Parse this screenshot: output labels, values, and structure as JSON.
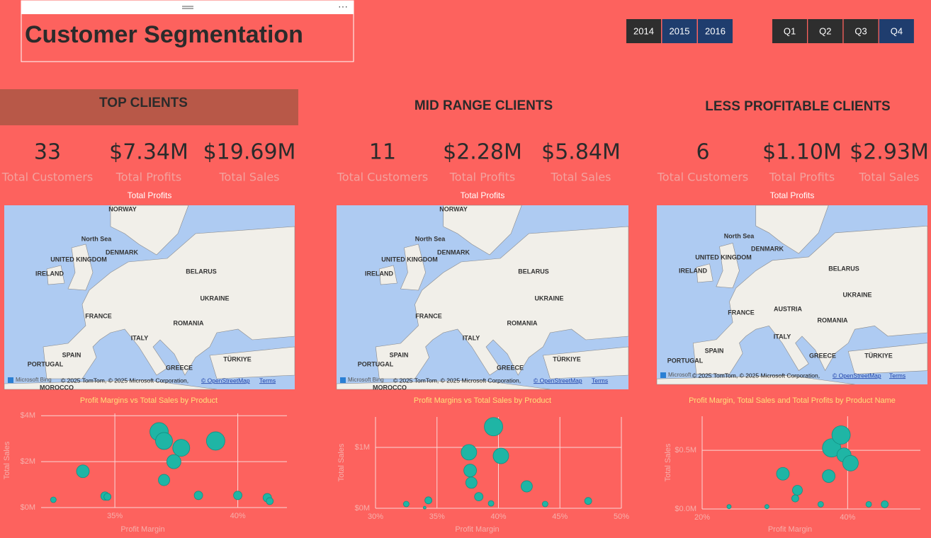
{
  "header": {
    "title": "Customer Segmentation"
  },
  "filters": {
    "years": [
      {
        "label": "2014",
        "selected": false
      },
      {
        "label": "2015",
        "selected": true
      },
      {
        "label": "2016",
        "selected": true
      }
    ],
    "quarters": [
      {
        "label": "Q1",
        "selected": false
      },
      {
        "label": "Q2",
        "selected": false
      },
      {
        "label": "Q3",
        "selected": false
      },
      {
        "label": "Q4",
        "selected": true
      }
    ]
  },
  "panels": [
    {
      "heading": "TOP CLIENTS",
      "highlighted": true,
      "kpis": [
        {
          "value": "33",
          "label": "Total Customers"
        },
        {
          "value": "$7.34M",
          "label": "Total Profits"
        },
        {
          "value": "$19.69M",
          "label": "Total Sales"
        }
      ],
      "map": {
        "title": "Total Profits",
        "labels": [
          "NORWAY",
          "North Sea",
          "DENMARK",
          "UNITED KINGDOM",
          "IRELAND",
          "BELARUS",
          "FRANCE",
          "UKRAINE",
          "ROMANIA",
          "ITALY",
          "SPAIN",
          "PORTUGAL",
          "GREECE",
          "TÜRKIYE",
          "MOROCCO"
        ],
        "provider": "Microsoft Bing",
        "attribution": "© 2025 TomTom, © 2025 Microsoft Corporation,",
        "osm": "© OpenStreetMap",
        "terms": "Terms"
      }
    },
    {
      "heading": "MID RANGE CLIENTS",
      "highlighted": false,
      "kpis": [
        {
          "value": "11",
          "label": "Total Customers"
        },
        {
          "value": "$2.28M",
          "label": "Total Profits"
        },
        {
          "value": "$5.84M",
          "label": "Total Sales"
        }
      ],
      "map": {
        "title": "Total Profits",
        "labels": [
          "NORWAY",
          "North Sea",
          "DENMARK",
          "UNITED KINGDOM",
          "IRELAND",
          "BELARUS",
          "FRANCE",
          "UKRAINE",
          "ROMANIA",
          "ITALY",
          "SPAIN",
          "PORTUGAL",
          "GREECE",
          "TÜRKIYE",
          "MOROCCO"
        ],
        "provider": "Microsoft Bing",
        "attribution": "© 2025 TomTom, © 2025 Microsoft Corporation,",
        "osm": "© OpenStreetMap",
        "terms": "Terms"
      }
    },
    {
      "heading": "LESS PROFITABLE CLIENTS",
      "highlighted": false,
      "kpis": [
        {
          "value": "6",
          "label": "Total Customers"
        },
        {
          "value": "$1.10M",
          "label": "Total Profits"
        },
        {
          "value": "$2.93M",
          "label": "Total Sales"
        }
      ],
      "map": {
        "title": "Total Profits",
        "labels": [
          "North Sea",
          "DENMARK",
          "UNITED KINGDOM",
          "IRELAND",
          "BELARUS",
          "FRANCE",
          "UKRAINE",
          "AUSTRIA",
          "ROMANIA",
          "ITALY",
          "SPAIN",
          "PORTUGAL",
          "GREECE",
          "TÜRKIYE"
        ],
        "provider": "Microsoft",
        "attribution": "© 2025 TomTom, © 2025 Microsoft Corporation,",
        "osm": "© OpenStreetMap",
        "terms": "Terms"
      }
    }
  ],
  "chart_data": [
    {
      "type": "scatter",
      "title": "Profit Margins vs Total Sales by Product",
      "x_label": "Profit Margin",
      "y_label": "Total Sales",
      "color": "#1fb5a5",
      "grid": true,
      "x": [
        32.5,
        33.7,
        34.6,
        34.7,
        36.8,
        37.0,
        37.7,
        37.4,
        37.0,
        38.4,
        39.1,
        40.0,
        41.2,
        41.3
      ],
      "values": [
        340000,
        1580000,
        500000,
        470000,
        3300000,
        2900000,
        2600000,
        2000000,
        1200000,
        530000,
        2900000,
        530000,
        430000,
        280000
      ],
      "sizes": [
        16,
        81,
        36,
        25,
        169,
        144,
        144,
        100,
        64,
        36,
        169,
        36,
        36,
        25
      ],
      "xlim": [
        32,
        42
      ],
      "ylim": [
        0,
        4100000
      ],
      "xticks": [
        {
          "value": 35,
          "label": "35%"
        },
        {
          "value": 40,
          "label": "40%"
        }
      ],
      "yticks": [
        {
          "value": 0,
          "label": "$0M"
        },
        {
          "value": 2000000,
          "label": "$2M"
        },
        {
          "value": 4000000,
          "label": "$4M"
        }
      ]
    },
    {
      "type": "scatter",
      "title": "Profit Margins vs Total Sales by Product",
      "x_label": "Profit Margin",
      "y_label": "Total Sales",
      "color": "#1fb5a5",
      "grid": true,
      "x": [
        32.5,
        34.0,
        34.3,
        37.6,
        37.7,
        37.8,
        38.4,
        39.6,
        40.2,
        39.4,
        42.3,
        43.8,
        47.3
      ],
      "values": [
        70000,
        10000,
        130000,
        920000,
        620000,
        420000,
        190000,
        1340000,
        860000,
        80000,
        360000,
        70000,
        120000
      ],
      "sizes": [
        16,
        4,
        25,
        121,
        81,
        64,
        36,
        169,
        121,
        16,
        64,
        16,
        25
      ],
      "xlim": [
        30,
        50
      ],
      "ylim": [
        0,
        1500000
      ],
      "xticks": [
        {
          "value": 30,
          "label": "30%"
        },
        {
          "value": 35,
          "label": "35%"
        },
        {
          "value": 40,
          "label": "40%"
        },
        {
          "value": 45,
          "label": "45%"
        },
        {
          "value": 50,
          "label": "50%"
        }
      ],
      "yticks": [
        {
          "value": 0,
          "label": "$0M"
        },
        {
          "value": 1000000,
          "label": "$1M"
        }
      ]
    },
    {
      "type": "scatter",
      "title": "Profit Margin, Total Sales and Total Profits by Product Name",
      "x_label": "Profit Margin",
      "y_label": "Total Sales",
      "color": "#1fb5a5",
      "grid": true,
      "x": [
        23.7,
        28.9,
        31.1,
        33.1,
        32.8,
        36.3,
        37.4,
        37.8,
        39.1,
        39.5,
        40.4,
        42.9,
        45.1
      ],
      "values": [
        20000,
        20000,
        300000,
        160000,
        90000,
        40000,
        280000,
        520000,
        630000,
        460000,
        390000,
        40000,
        40000
      ],
      "sizes": [
        9,
        9,
        81,
        49,
        25,
        16,
        81,
        169,
        169,
        100,
        121,
        16,
        25
      ],
      "xlim": [
        20,
        50
      ],
      "ylim": [
        0,
        790000
      ],
      "xticks": [
        {
          "value": 20,
          "label": "20%"
        },
        {
          "value": 40,
          "label": "40%"
        }
      ],
      "yticks": [
        {
          "value": 0,
          "label": "$0.0M"
        },
        {
          "value": 500000,
          "label": "$0.5M"
        }
      ]
    }
  ]
}
